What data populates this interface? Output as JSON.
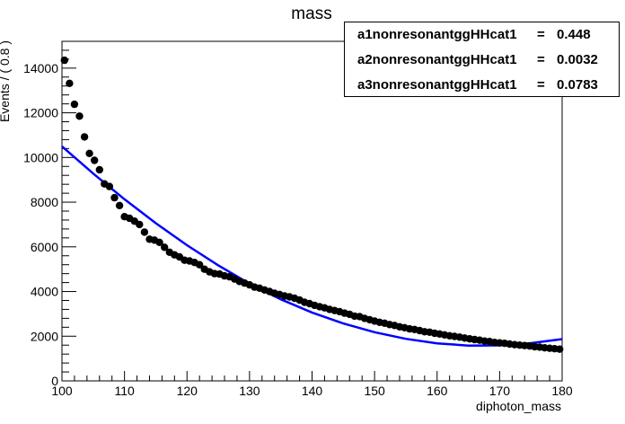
{
  "chart_data": {
    "type": "scatter",
    "title": "mass",
    "xlabel": "diphoton_mass",
    "ylabel": "Events / ( 0.8 )",
    "xlim": [
      100,
      180
    ],
    "ylim": [
      0,
      15200
    ],
    "x_ticks": [
      "100",
      "110",
      "120",
      "130",
      "140",
      "150",
      "160",
      "170",
      "180"
    ],
    "y_ticks": [
      "0",
      "2000",
      "4000",
      "6000",
      "8000",
      "10000",
      "12000",
      "14000"
    ],
    "series": [
      {
        "kind": "points",
        "color": "#000000",
        "x": [
          100.4,
          101.2,
          102.0,
          102.8,
          103.6,
          104.4,
          105.2,
          106.0,
          106.8,
          107.6,
          108.4,
          109.2,
          110.0,
          110.8,
          111.6,
          112.4,
          113.2,
          114.0,
          114.8,
          115.6,
          116.4,
          117.2,
          118.0,
          118.8,
          119.6,
          120.4,
          121.2,
          122.0,
          122.8,
          123.6,
          124.4,
          125.2,
          126.0,
          126.8,
          127.6,
          128.4,
          129.2,
          130.0,
          130.8,
          131.6,
          132.4,
          133.2,
          134.0,
          134.8,
          135.6,
          136.4,
          137.2,
          138.0,
          138.8,
          139.6,
          140.4,
          141.2,
          142.0,
          142.8,
          143.6,
          144.4,
          145.2,
          146.0,
          146.8,
          147.6,
          148.4,
          149.2,
          150.0,
          150.8,
          151.6,
          152.4,
          153.2,
          154.0,
          154.8,
          155.6,
          156.4,
          157.2,
          158.0,
          158.8,
          159.6,
          160.4,
          161.2,
          162.0,
          162.8,
          163.6,
          164.4,
          165.2,
          166.0,
          166.8,
          167.6,
          168.4,
          169.2,
          170.0,
          170.8,
          171.6,
          172.4,
          173.2,
          174.0,
          174.8,
          175.6,
          176.4,
          177.2,
          178.0,
          178.8,
          179.6
        ],
        "y": [
          14350,
          13320,
          12380,
          11850,
          10920,
          10180,
          9870,
          9450,
          8820,
          8700,
          8200,
          7850,
          7350,
          7280,
          7150,
          7000,
          6660,
          6340,
          6300,
          6200,
          5980,
          5760,
          5640,
          5550,
          5400,
          5370,
          5300,
          5200,
          5000,
          4880,
          4800,
          4780,
          4700,
          4660,
          4560,
          4450,
          4380,
          4300,
          4200,
          4150,
          4070,
          4000,
          3920,
          3870,
          3800,
          3760,
          3700,
          3620,
          3520,
          3460,
          3380,
          3320,
          3270,
          3200,
          3150,
          3100,
          3030,
          2980,
          2900,
          2880,
          2800,
          2740,
          2680,
          2620,
          2580,
          2520,
          2480,
          2420,
          2380,
          2330,
          2300,
          2250,
          2200,
          2180,
          2130,
          2100,
          2060,
          2020,
          1990,
          1960,
          1920,
          1880,
          1850,
          1820,
          1780,
          1760,
          1720,
          1700,
          1680,
          1650,
          1620,
          1600,
          1580,
          1560,
          1530,
          1510,
          1480,
          1460,
          1440,
          1420
        ]
      },
      {
        "kind": "curve",
        "color": "#0000ff",
        "x": [
          100,
          105,
          110,
          115,
          120,
          125,
          130,
          135,
          140,
          145,
          150,
          155,
          160,
          165,
          170,
          175,
          180
        ],
        "y": [
          10500,
          9280,
          8130,
          7060,
          6070,
          5170,
          4350,
          3650,
          3060,
          2570,
          2180,
          1880,
          1680,
          1580,
          1590,
          1690,
          1870
        ]
      }
    ],
    "legend_position": "top-right",
    "grid": false
  },
  "params": [
    {
      "name": "a1nonresonantggHHcat1",
      "eq": "=",
      "value": "0.448"
    },
    {
      "name": "a2nonresonantggHHcat1",
      "eq": "=",
      "value": "0.0032"
    },
    {
      "name": "a3nonresonantggHHcat1",
      "eq": "=",
      "value": "0.0783"
    }
  ]
}
